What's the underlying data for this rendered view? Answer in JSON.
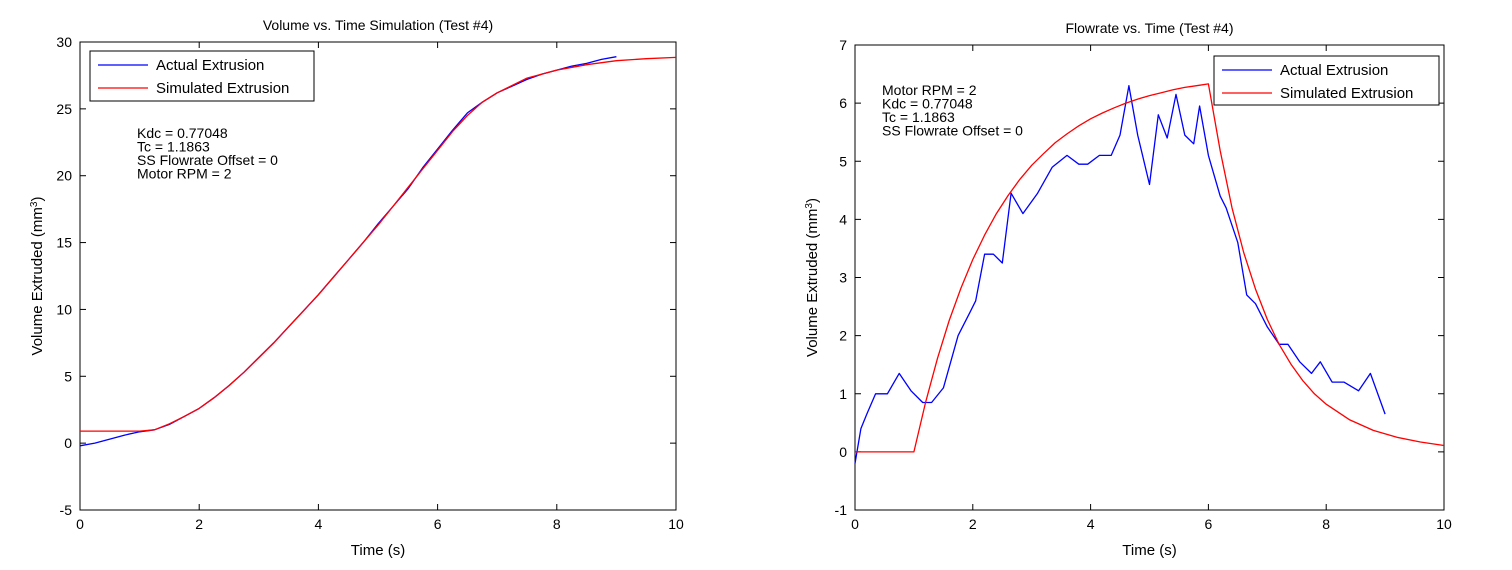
{
  "chart_data": [
    {
      "type": "line",
      "title": "Volume vs. Time Simulation (Test #4)",
      "xlabel": "Time (s)",
      "ylabel": "Volume Extruded (mm",
      "ylabel_sup": "3",
      "ylabel_end": ")",
      "xlim": [
        0,
        10
      ],
      "ylim": [
        -5,
        30
      ],
      "xticks": [
        "0",
        "2",
        "4",
        "6",
        "8",
        "10"
      ],
      "yticks": [
        "-5",
        "0",
        "5",
        "10",
        "15",
        "20",
        "25",
        "30"
      ],
      "grid": false,
      "legend_position": "top-left",
      "annotation": [
        "Kdc = 0.77048",
        "Tc = 1.1863",
        "SS Flowrate Offset = 0",
        "Motor RPM = 2"
      ],
      "series": [
        {
          "name": "Actual Extrusion",
          "color": "#0000ff",
          "x": [
            0,
            0.25,
            0.5,
            0.75,
            1.0,
            1.25,
            1.5,
            1.75,
            2.0,
            2.25,
            2.5,
            2.75,
            3.0,
            3.25,
            3.5,
            3.75,
            4.0,
            4.25,
            4.5,
            4.75,
            5.0,
            5.25,
            5.5,
            5.75,
            6.0,
            6.25,
            6.5,
            6.75,
            7.0,
            7.25,
            7.5,
            7.75,
            8.0,
            8.25,
            8.5,
            8.75,
            9.0
          ],
          "y": [
            -0.2,
            0.0,
            0.3,
            0.6,
            0.85,
            1.0,
            1.4,
            2.0,
            2.6,
            3.4,
            4.3,
            5.3,
            6.4,
            7.5,
            8.7,
            9.9,
            11.1,
            12.4,
            13.7,
            15.0,
            16.4,
            17.7,
            19.0,
            20.6,
            22.0,
            23.4,
            24.7,
            25.5,
            26.2,
            26.7,
            27.2,
            27.6,
            27.9,
            28.2,
            28.4,
            28.7,
            28.9
          ]
        },
        {
          "name": "Simulated Extrusion",
          "color": "#ff0000",
          "x": [
            0,
            0.5,
            1.0,
            1.25,
            1.5,
            1.75,
            2.0,
            2.25,
            2.5,
            2.75,
            3.0,
            3.25,
            3.5,
            3.75,
            4.0,
            4.25,
            4.5,
            4.75,
            5.0,
            5.25,
            5.5,
            5.75,
            6.0,
            6.25,
            6.5,
            6.75,
            7.0,
            7.5,
            8.0,
            8.5,
            9.0,
            9.5,
            10.0
          ],
          "y": [
            0.9,
            0.9,
            0.9,
            1.0,
            1.45,
            2.0,
            2.6,
            3.4,
            4.3,
            5.3,
            6.4,
            7.5,
            8.7,
            9.9,
            11.1,
            12.4,
            13.7,
            15.0,
            16.3,
            17.7,
            19.1,
            20.5,
            21.9,
            23.3,
            24.5,
            25.5,
            26.2,
            27.3,
            27.9,
            28.3,
            28.6,
            28.75,
            28.85
          ]
        }
      ]
    },
    {
      "type": "line",
      "title": "Flowrate vs. Time (Test #4)",
      "xlabel": "Time (s)",
      "ylabel": "Volume Extruded (mm",
      "ylabel_sup": "3",
      "ylabel_end": ")",
      "xlim": [
        0,
        10
      ],
      "ylim": [
        -1,
        7
      ],
      "xticks": [
        "0",
        "2",
        "4",
        "6",
        "8",
        "10"
      ],
      "yticks": [
        "-1",
        "0",
        "1",
        "2",
        "3",
        "4",
        "5",
        "6",
        "7"
      ],
      "grid": false,
      "legend_position": "top-right",
      "annotation": [
        "Motor RPM = 2",
        "Kdc = 0.77048",
        "Tc = 1.1863",
        "SS Flowrate Offset = 0"
      ],
      "series": [
        {
          "name": "Actual Extrusion",
          "color": "#0000ff",
          "x": [
            0,
            0.1,
            0.2,
            0.35,
            0.55,
            0.75,
            0.95,
            1.15,
            1.3,
            1.5,
            1.75,
            1.95,
            2.05,
            2.2,
            2.35,
            2.5,
            2.65,
            2.85,
            3.1,
            3.35,
            3.6,
            3.8,
            3.95,
            4.15,
            4.35,
            4.5,
            4.65,
            4.8,
            5.0,
            5.15,
            5.3,
            5.45,
            5.6,
            5.75,
            5.85,
            6.0,
            6.1,
            6.2,
            6.3,
            6.5,
            6.65,
            6.8,
            7.0,
            7.2,
            7.35,
            7.55,
            7.75,
            7.9,
            8.1,
            8.3,
            8.55,
            8.75,
            9.0
          ],
          "y": [
            -0.2,
            0.4,
            0.65,
            1.0,
            1.0,
            1.35,
            1.05,
            0.85,
            0.85,
            1.1,
            2.0,
            2.4,
            2.6,
            3.4,
            3.4,
            3.25,
            4.45,
            4.1,
            4.45,
            4.9,
            5.1,
            4.95,
            4.95,
            5.1,
            5.1,
            5.45,
            6.3,
            5.45,
            4.6,
            5.8,
            5.4,
            6.15,
            5.45,
            5.3,
            5.95,
            5.1,
            4.75,
            4.4,
            4.2,
            3.6,
            2.7,
            2.55,
            2.15,
            1.85,
            1.85,
            1.55,
            1.35,
            1.55,
            1.2,
            1.2,
            1.05,
            1.35,
            0.65
          ]
        },
        {
          "name": "Simulated Extrusion",
          "color": "#ff0000",
          "x": [
            0,
            0.5,
            1.0,
            1.2,
            1.4,
            1.6,
            1.8,
            2.0,
            2.2,
            2.4,
            2.6,
            2.8,
            3.0,
            3.2,
            3.4,
            3.6,
            3.8,
            4.0,
            4.2,
            4.4,
            4.6,
            4.8,
            5.0,
            5.2,
            5.4,
            5.6,
            5.8,
            6.0,
            6.2,
            6.4,
            6.6,
            6.8,
            7.0,
            7.2,
            7.4,
            7.6,
            7.8,
            8.0,
            8.4,
            8.8,
            9.2,
            9.6,
            10.0
          ],
          "y": [
            0,
            0,
            0,
            0.86,
            1.61,
            2.26,
            2.82,
            3.31,
            3.73,
            4.1,
            4.41,
            4.69,
            4.93,
            5.13,
            5.32,
            5.47,
            5.61,
            5.73,
            5.83,
            5.92,
            6.0,
            6.07,
            6.13,
            6.18,
            6.23,
            6.27,
            6.3,
            6.33,
            5.18,
            4.2,
            3.43,
            2.8,
            2.28,
            1.85,
            1.51,
            1.23,
            1.0,
            0.82,
            0.55,
            0.37,
            0.25,
            0.17,
            0.11
          ]
        }
      ]
    }
  ]
}
